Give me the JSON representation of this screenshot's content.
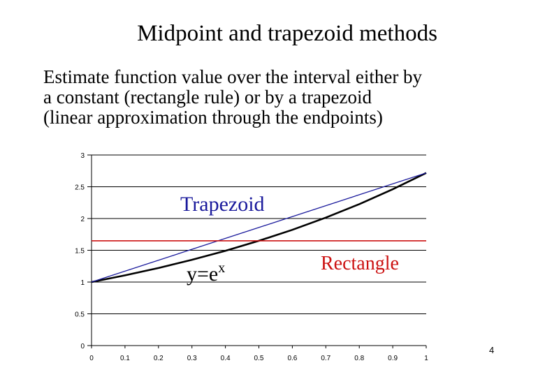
{
  "slide": {
    "title": "Midpoint and trapezoid methods",
    "body_lines": [
      "Estimate function value over the interval either by",
      "a constant (rectangle rule) or by a trapezoid",
      "(linear approximation through the endpoints)"
    ],
    "page_number": "4"
  },
  "chart_data": {
    "type": "line",
    "xlim": [
      0,
      1
    ],
    "ylim": [
      0,
      3
    ],
    "x_ticks": [
      "0",
      "0.1",
      "0.2",
      "0.3",
      "0.4",
      "0.5",
      "0.6",
      "0.7",
      "0.8",
      "0.9",
      "1"
    ],
    "y_ticks": [
      "0",
      "0.5",
      "1",
      "1.5",
      "2",
      "2.5",
      "3"
    ],
    "grid": true,
    "series": [
      {
        "x": [
          0,
          0.1,
          0.2,
          0.3,
          0.4,
          0.5,
          0.6,
          0.7,
          0.8,
          0.9,
          1.0
        ],
        "y": [
          1.0,
          1.105,
          1.221,
          1.35,
          1.492,
          1.649,
          1.822,
          2.014,
          2.226,
          2.46,
          2.718
        ],
        "color": "#000000"
      },
      {
        "x": [
          0,
          1
        ],
        "y": [
          1.0,
          2.718
        ],
        "color": "#1a1a9c"
      },
      {
        "x": [
          0,
          1
        ],
        "y": [
          1.649,
          1.649
        ],
        "color": "#cc1111"
      }
    ],
    "annotations": [
      {
        "text": "Trapezoid",
        "color": "#1a1a9c"
      },
      {
        "text": "y=e",
        "sup": "x",
        "color": "#000000"
      },
      {
        "text": "Rectangle",
        "color": "#cc1111"
      }
    ]
  }
}
